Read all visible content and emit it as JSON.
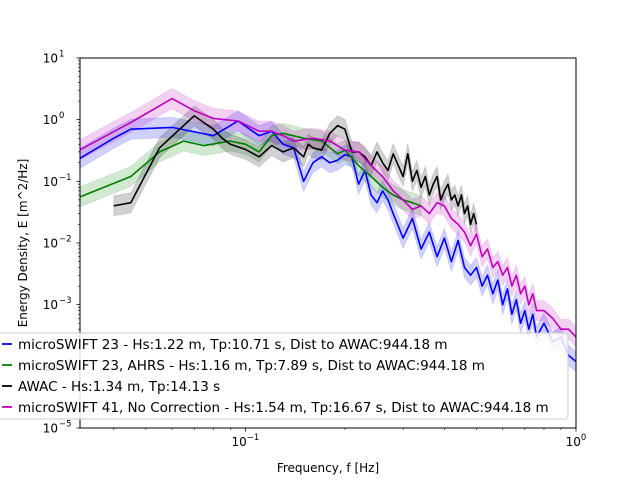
{
  "chart_data": {
    "type": "line",
    "xlabel": "Frequency, f [Hz]",
    "ylabel": "Energy Density, E [m^2/Hz]",
    "xscale": "log",
    "yscale": "log",
    "xlim": [
      0.0316,
      1.0
    ],
    "ylim": [
      1e-05,
      10
    ],
    "x_major_ticks": [
      0.1,
      1
    ],
    "x_tick_labels": [
      "10",
      "10"
    ],
    "x_tick_exponents": [
      "−1",
      "0"
    ],
    "y_major_ticks": [
      1e-05,
      0.0001,
      0.001,
      0.01,
      0.1,
      1,
      10
    ],
    "y_tick_labels": [
      "10",
      "10",
      "10",
      "10",
      "10",
      "10",
      "10"
    ],
    "y_tick_exponents": [
      "−5",
      "−4",
      "−3",
      "−2",
      "−1",
      "0",
      "1"
    ],
    "grid": false,
    "legend_position": "lower-left",
    "series": [
      {
        "name": "microSWIFT 23 - Hs:1.22 m, Tp:10.71 s, Dist to AWAC:944.18 m",
        "color": "#0000ff",
        "band": true,
        "x": [
          0.03,
          0.04,
          0.045,
          0.06,
          0.08,
          0.095,
          0.11,
          0.12,
          0.13,
          0.14,
          0.15,
          0.16,
          0.17,
          0.18,
          0.19,
          0.2,
          0.21,
          0.22,
          0.23,
          0.24,
          0.25,
          0.26,
          0.27,
          0.28,
          0.3,
          0.32,
          0.34,
          0.36,
          0.38,
          0.4,
          0.42,
          0.44,
          0.46,
          0.48,
          0.5,
          0.52,
          0.54,
          0.56,
          0.58,
          0.6,
          0.62,
          0.64,
          0.66,
          0.68,
          0.7,
          0.72,
          0.74,
          0.76,
          0.8,
          0.85,
          0.9,
          0.95,
          1.0
        ],
        "y": [
          0.2,
          0.5,
          0.7,
          0.75,
          0.55,
          0.95,
          0.55,
          0.65,
          0.4,
          0.35,
          0.1,
          0.2,
          0.25,
          0.2,
          0.22,
          0.27,
          0.25,
          0.09,
          0.15,
          0.06,
          0.045,
          0.07,
          0.05,
          0.03,
          0.012,
          0.025,
          0.008,
          0.015,
          0.006,
          0.012,
          0.005,
          0.011,
          0.004,
          0.003,
          0.004,
          0.002,
          0.003,
          0.0015,
          0.0025,
          0.001,
          0.0018,
          0.0007,
          0.0012,
          0.0005,
          0.0008,
          0.0004,
          0.0007,
          0.0003,
          0.0005,
          0.00025,
          0.0003,
          0.00015,
          0.00012
        ]
      },
      {
        "name": "microSWIFT 23, AHRS - Hs:1.16 m, Tp:7.89 s, Dist to AWAC:944.18 m",
        "color": "#008000",
        "band": true,
        "x": [
          0.03,
          0.045,
          0.055,
          0.065,
          0.075,
          0.09,
          0.1,
          0.11,
          0.12,
          0.13,
          0.15,
          0.17,
          0.19,
          0.2,
          0.22,
          0.24,
          0.26,
          0.28,
          0.3,
          0.32,
          0.34
        ],
        "y": [
          0.05,
          0.12,
          0.3,
          0.45,
          0.38,
          0.45,
          0.4,
          0.3,
          0.55,
          0.6,
          0.5,
          0.45,
          0.28,
          0.32,
          0.18,
          0.12,
          0.08,
          0.06,
          0.05,
          0.045,
          0.04
        ]
      },
      {
        "name": "AWAC - Hs:1.34 m, Tp:14.13 s",
        "color": "#000000",
        "band": true,
        "x": [
          0.04,
          0.045,
          0.055,
          0.065,
          0.07,
          0.08,
          0.085,
          0.09,
          0.1,
          0.11,
          0.12,
          0.13,
          0.14,
          0.15,
          0.155,
          0.16,
          0.17,
          0.18,
          0.19,
          0.2,
          0.21,
          0.22,
          0.23,
          0.24,
          0.25,
          0.26,
          0.27,
          0.28,
          0.29,
          0.3,
          0.31,
          0.32,
          0.33,
          0.34,
          0.35,
          0.36,
          0.37,
          0.38,
          0.39,
          0.4,
          0.41,
          0.42,
          0.43,
          0.44,
          0.45,
          0.46,
          0.47,
          0.48,
          0.49,
          0.5
        ],
        "y": [
          0.04,
          0.045,
          0.35,
          0.8,
          1.15,
          0.7,
          0.5,
          0.4,
          0.33,
          0.25,
          0.38,
          0.3,
          0.35,
          0.25,
          0.4,
          0.35,
          0.32,
          0.6,
          0.8,
          0.7,
          0.3,
          0.3,
          0.25,
          0.18,
          0.3,
          0.2,
          0.15,
          0.28,
          0.18,
          0.12,
          0.28,
          0.1,
          0.15,
          0.08,
          0.12,
          0.06,
          0.09,
          0.12,
          0.05,
          0.07,
          0.09,
          0.05,
          0.06,
          0.04,
          0.06,
          0.03,
          0.04,
          0.02,
          0.03,
          0.02
        ]
      },
      {
        "name": "microSWIFT 41, No Correction - Hs:1.54 m, Tp:16.67 s, Dist to AWAC:944.18 m",
        "color": "#bf00bf",
        "band": true,
        "x": [
          0.03,
          0.045,
          0.06,
          0.07,
          0.08,
          0.095,
          0.11,
          0.12,
          0.13,
          0.14,
          0.16,
          0.18,
          0.2,
          0.22,
          0.24,
          0.26,
          0.28,
          0.3,
          0.32,
          0.34,
          0.36,
          0.38,
          0.4,
          0.42,
          0.44,
          0.46,
          0.48,
          0.5,
          0.52,
          0.54,
          0.56,
          0.58,
          0.6,
          0.62,
          0.64,
          0.66,
          0.68,
          0.7,
          0.72,
          0.74,
          0.76,
          0.8,
          0.85,
          0.9,
          0.95,
          1.0
        ],
        "y": [
          0.28,
          0.9,
          2.2,
          1.4,
          1.05,
          0.95,
          0.65,
          0.65,
          0.55,
          0.45,
          0.5,
          0.45,
          0.32,
          0.3,
          0.18,
          0.12,
          0.07,
          0.05,
          0.035,
          0.04,
          0.03,
          0.045,
          0.04,
          0.025,
          0.02,
          0.015,
          0.009,
          0.014,
          0.006,
          0.008,
          0.004,
          0.005,
          0.003,
          0.004,
          0.002,
          0.003,
          0.0015,
          0.002,
          0.001,
          0.0015,
          0.0008,
          0.0008,
          0.0006,
          0.0004,
          0.0004,
          0.0003
        ]
      }
    ]
  }
}
